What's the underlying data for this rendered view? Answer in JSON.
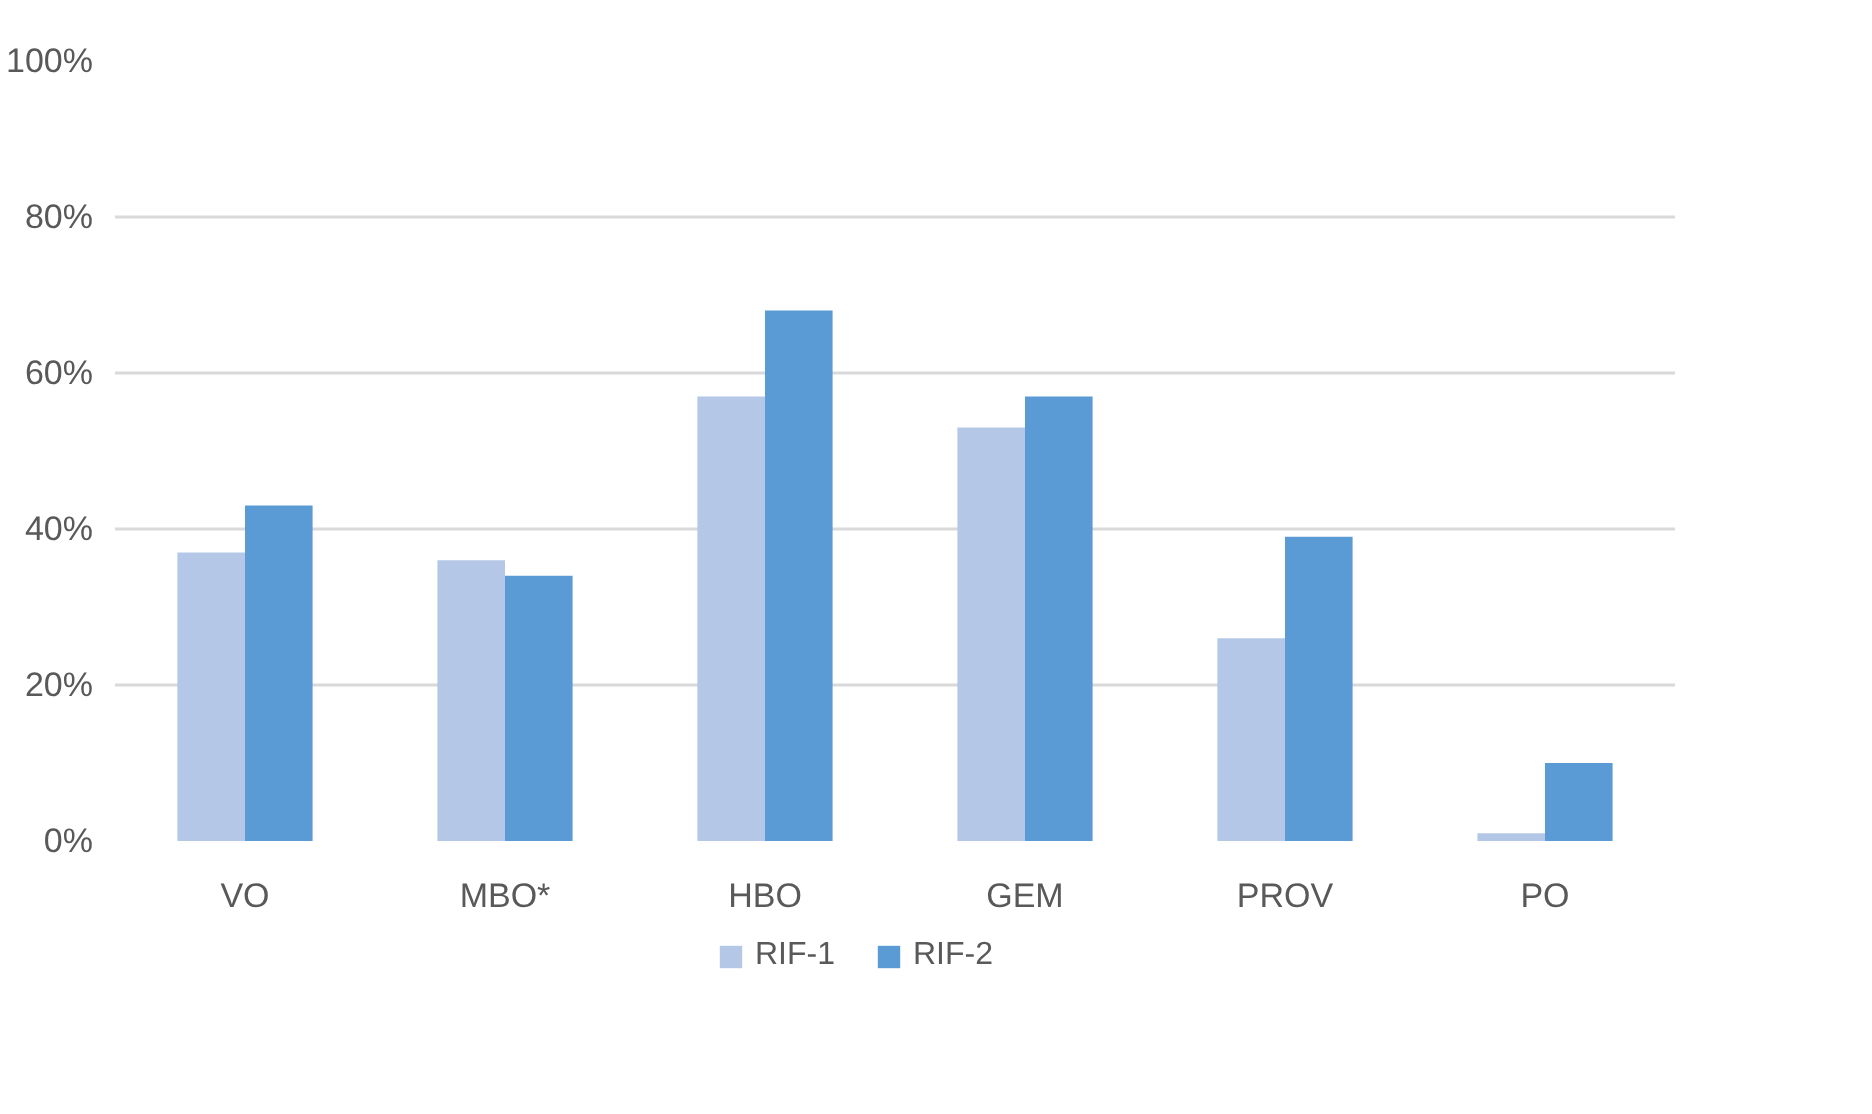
{
  "chart_data": {
    "type": "bar",
    "categories": [
      "VO",
      "MBO*",
      "HBO",
      "GEM",
      "PROV",
      "PO"
    ],
    "series": [
      {
        "name": "RIF-1",
        "color": "#b4c7e7",
        "values": [
          37,
          36,
          57,
          53,
          26,
          1
        ]
      },
      {
        "name": "RIF-2",
        "color": "#5b9bd5",
        "values": [
          43,
          34,
          68,
          57,
          39,
          10
        ]
      }
    ],
    "ylim": [
      0,
      100
    ],
    "yticks": [
      {
        "value": 0,
        "label": "0%"
      },
      {
        "value": 20,
        "label": "20%"
      },
      {
        "value": 40,
        "label": "40%"
      },
      {
        "value": 60,
        "label": "60%"
      },
      {
        "value": 80,
        "label": "80%"
      },
      {
        "value": 100,
        "label": "100%"
      }
    ],
    "grid": "y",
    "legend": "bottom"
  }
}
